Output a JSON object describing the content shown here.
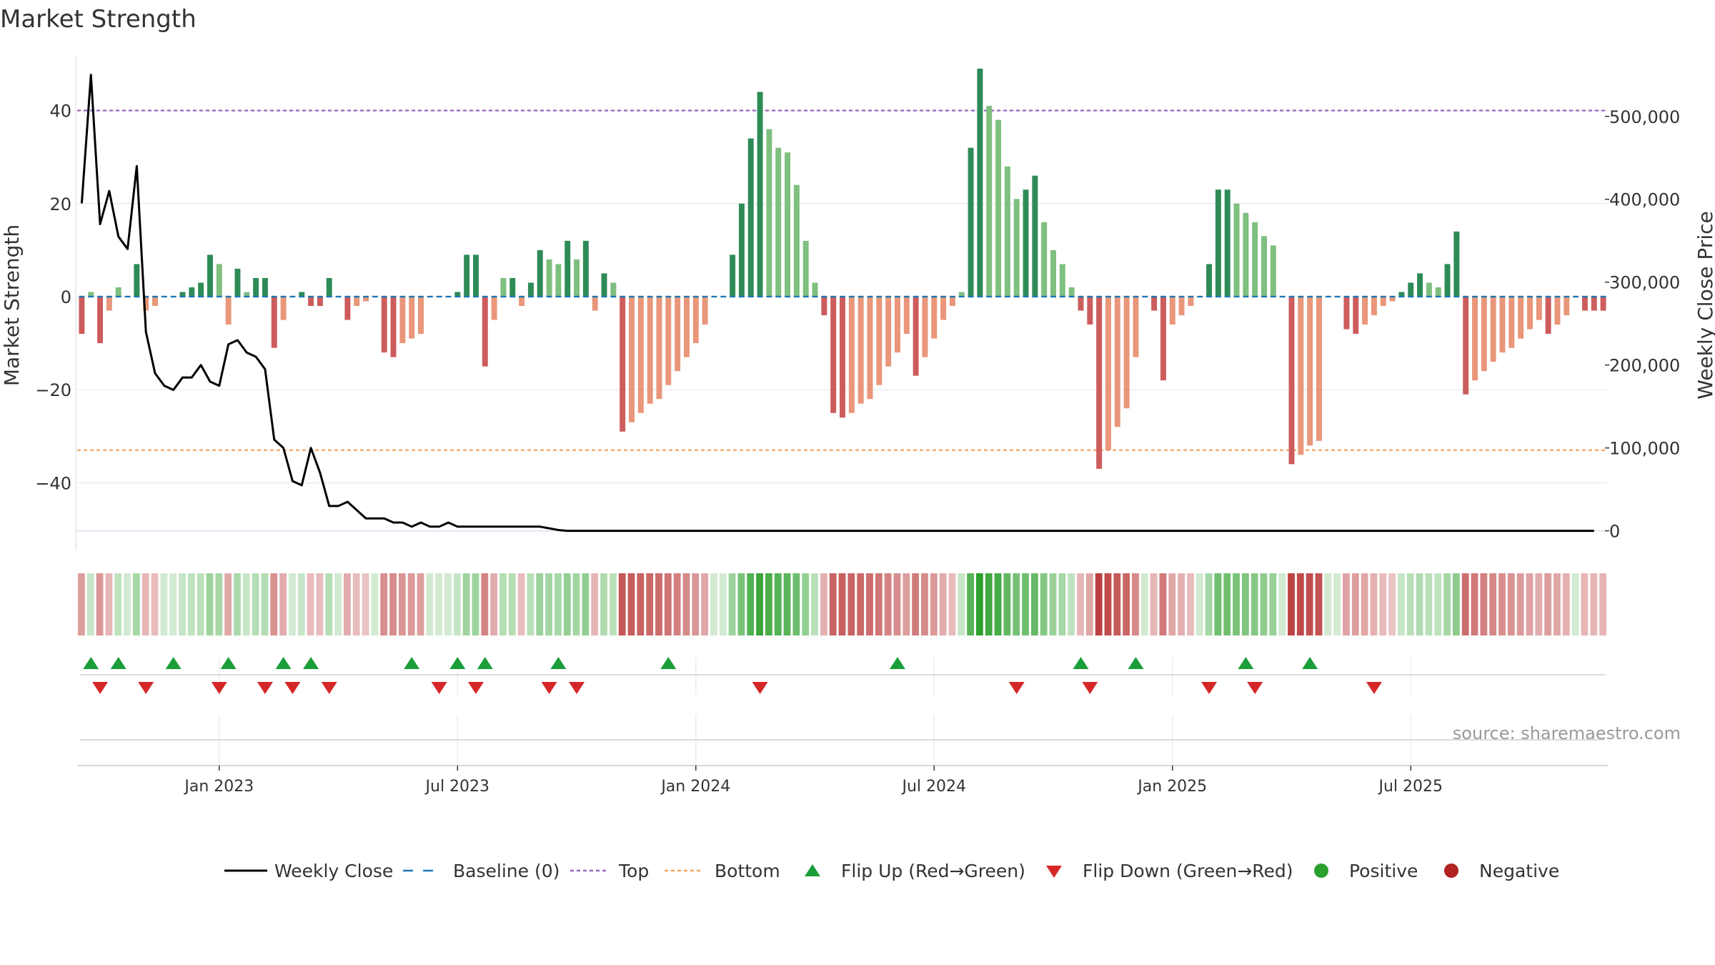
{
  "chart_data": {
    "type": "bar",
    "title": "Market Strength",
    "ylabel": "Market Strength",
    "y2label": "Weekly Close Price",
    "ylim": [
      -53,
      53
    ],
    "y2lim": [
      -15000,
      580000
    ],
    "y_ticks": [
      -40,
      -20,
      0,
      20,
      40
    ],
    "y_tick_labels": [
      "−40",
      "−20",
      "0",
      "20",
      "40"
    ],
    "y2_ticks": [
      0,
      100000,
      200000,
      300000,
      400000,
      500000
    ],
    "y2_tick_labels": [
      "0",
      "100,000",
      "200,000",
      "300,000",
      "400,000",
      "500,000"
    ],
    "top_line": 40,
    "bottom_line": -33,
    "x_tick_labels": [
      "Jan 2023",
      "Jul 2023",
      "Jan 2024",
      "Jul 2024",
      "Jan 2025",
      "Jul 2025"
    ],
    "x_tick_weeks": [
      15,
      41,
      67,
      93,
      119,
      145
    ],
    "strength": [
      -8,
      1,
      -10,
      -3,
      2,
      0,
      7,
      -3,
      -2,
      0,
      0,
      1,
      2,
      3,
      9,
      7,
      -6,
      6,
      1,
      4,
      4,
      -11,
      -5,
      0,
      1,
      -2,
      -2,
      4,
      0,
      -5,
      -2,
      -1,
      0,
      -12,
      -13,
      -10,
      -9,
      -8,
      0,
      0,
      0,
      1,
      9,
      9,
      -15,
      -5,
      4,
      4,
      -2,
      3,
      10,
      8,
      7,
      12,
      8,
      12,
      -3,
      5,
      3,
      -29,
      -27,
      -25,
      -23,
      -22,
      -19,
      -16,
      -13,
      -10,
      -6,
      0,
      0,
      9,
      20,
      34,
      44,
      36,
      32,
      31,
      24,
      12,
      3,
      -4,
      -25,
      -26,
      -25,
      -23,
      -22,
      -19,
      -15,
      -12,
      -8,
      -17,
      -13,
      -9,
      -5,
      -2,
      1,
      32,
      49,
      41,
      38,
      28,
      21,
      23,
      26,
      16,
      10,
      7,
      2,
      -3,
      -6,
      -37,
      -33,
      -28,
      -24,
      -13,
      0,
      -3,
      -18,
      -6,
      -4,
      -2,
      0,
      7,
      23,
      23,
      20,
      18,
      16,
      13,
      11,
      0,
      -36,
      -34,
      -32,
      -31,
      0,
      0,
      -7,
      -8,
      -6,
      -4,
      -2,
      -1,
      1,
      3,
      5,
      3,
      2,
      7,
      14,
      -21,
      -18,
      -16,
      -14,
      -12,
      -11,
      -9,
      -7,
      -5,
      -8,
      -6,
      -4,
      0,
      -3,
      -3,
      -3
    ],
    "weekly_close": [
      395000,
      550000,
      370000,
      410000,
      355000,
      340000,
      440000,
      240000,
      190000,
      175000,
      170000,
      185000,
      185000,
      200000,
      180000,
      175000,
      225000,
      230000,
      215000,
      210000,
      195000,
      110000,
      100000,
      60000,
      55000,
      100000,
      70000,
      30000,
      30000,
      35000,
      25000,
      15000,
      15000,
      15000,
      10000,
      10000,
      5000,
      10000,
      5000,
      5000,
      10000,
      5000,
      5000,
      5000,
      5000,
      5000,
      5000,
      5000,
      5000,
      5000,
      5000,
      3000,
      1000,
      0,
      0,
      0,
      0,
      0,
      0,
      0,
      0,
      0,
      0,
      0,
      0,
      0,
      0,
      0,
      0,
      0,
      0,
      0,
      0,
      0,
      0,
      0,
      0,
      0,
      0,
      0,
      0,
      0,
      0,
      0,
      0,
      0,
      0,
      0,
      0,
      0,
      0,
      0,
      0,
      0,
      0,
      0,
      0,
      0,
      0,
      0,
      0,
      0,
      0,
      0,
      0,
      0,
      0,
      0,
      0,
      0,
      0,
      0,
      0,
      0,
      0,
      0,
      0,
      0,
      0,
      0,
      0,
      0,
      0,
      0,
      0,
      0,
      0,
      0,
      0,
      0,
      0,
      0,
      0,
      0,
      0,
      0,
      0,
      0,
      0,
      0,
      0,
      0,
      0,
      0,
      0,
      0,
      0,
      0,
      0,
      0,
      0,
      0,
      0,
      0,
      0,
      0,
      0,
      0,
      0,
      0,
      0,
      0,
      0,
      0,
      0,
      0
    ],
    "flip_up_weeks": [
      1,
      4,
      10,
      16,
      22,
      25,
      36,
      41,
      44,
      52,
      64,
      89,
      109,
      115,
      127,
      134
    ],
    "flip_down_weeks": [
      2,
      7,
      15,
      20,
      23,
      27,
      39,
      43,
      51,
      54,
      74,
      102,
      110,
      123,
      128,
      141
    ],
    "source": "source: sharemaestro.com",
    "colors": {
      "strong_pos": "#2e8b57",
      "weak_pos": "#7fbf7f",
      "strong_neg": "#cd5c5c",
      "weak_neg": "#e9967a",
      "close_line": "#000000",
      "baseline": "#1f77b4",
      "top": "#9467bd",
      "bottom": "#f4a460",
      "flip_up": "#1a9e3a",
      "flip_down": "#d62728",
      "positive": "#2ca02c",
      "negative": "#b22222"
    },
    "legend": {
      "weekly_close": "Weekly Close",
      "baseline": "Baseline (0)",
      "top": "Top",
      "bottom": "Bottom",
      "flip_up": "Flip Up (Red→Green)",
      "flip_down": "Flip Down (Green→Red)",
      "positive": "Positive",
      "negative": "Negative"
    }
  }
}
